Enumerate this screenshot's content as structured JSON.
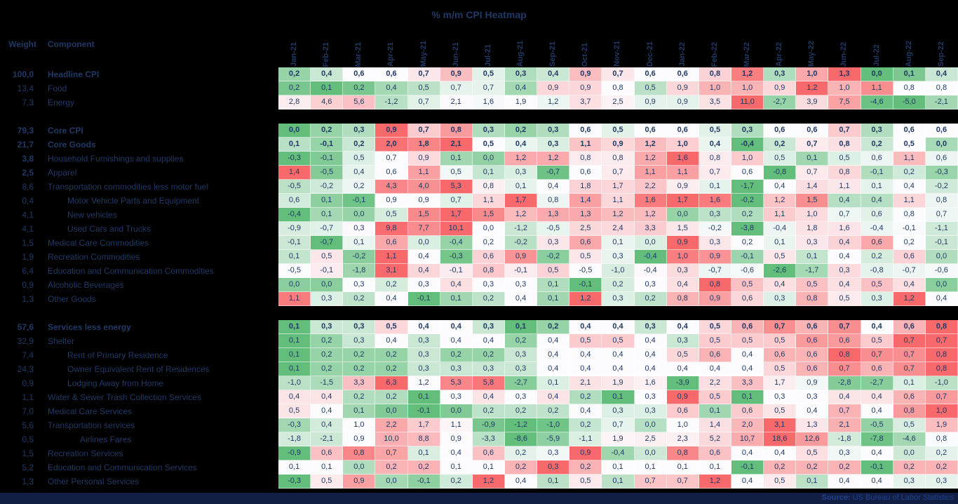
{
  "title": "% m/m CPI Heatmap",
  "header": {
    "weight": "Weight",
    "component": "Component"
  },
  "footer": {
    "source_label": "Source:",
    "source_text": "US Bureau of Labor Statistics"
  },
  "colors": {
    "background": "#000000",
    "text": "#1f3864",
    "scale_min_green": "#63be7b",
    "scale_mid_white": "#fcfcff",
    "scale_max_red": "#f8696b",
    "gridline": "rgba(255,255,255,0.55)",
    "footer_bar": "#111f45"
  },
  "chart_data": {
    "type": "heatmap",
    "title": "% m/m CPI Heatmap",
    "color_scale": "per-row 3-color: green at min, white at median, red at max",
    "decimal_separator": ",",
    "x": [
      "Jan-21",
      "Feb-21",
      "Mar-21",
      "Apr-21",
      "May-21",
      "Jun-21",
      "Jul-21",
      "Aug-21",
      "Sep-21",
      "Oct-21",
      "Nov-21",
      "Dec-21",
      "Jan-22",
      "Feb-22",
      "Mar-22",
      "Apr-22",
      "May-22",
      "Jun-22",
      "Jul-22",
      "Aug-22",
      "Sep-22"
    ],
    "groups": [
      {
        "rows": [
          {
            "weight": "100,0",
            "label": "Headline CPI",
            "bold": true,
            "weight_bold": true,
            "indent": 0,
            "values": [
              0.2,
              0.4,
              0.6,
              0.6,
              0.7,
              0.9,
              0.5,
              0.3,
              0.4,
              0.9,
              0.7,
              0.6,
              0.6,
              0.8,
              1.2,
              0.3,
              1.0,
              1.3,
              0.0,
              0.1,
              0.4
            ]
          },
          {
            "weight": "13,4",
            "label": "Food",
            "bold": false,
            "weight_bold": false,
            "indent": 0,
            "values": [
              0.2,
              0.1,
              0.2,
              0.4,
              0.5,
              0.7,
              0.7,
              0.4,
              0.9,
              0.9,
              0.8,
              0.5,
              0.9,
              1.0,
              1.0,
              0.9,
              1.2,
              1.0,
              1.1,
              0.8,
              0.8
            ]
          },
          {
            "weight": "7,3",
            "label": "Energy",
            "bold": false,
            "weight_bold": false,
            "indent": 0,
            "values": [
              2.8,
              4.6,
              5.6,
              -1.2,
              0.7,
              2.1,
              1.6,
              1.9,
              1.2,
              3.7,
              2.5,
              0.9,
              0.9,
              3.5,
              11.0,
              -2.7,
              3.9,
              7.5,
              -4.6,
              -5.0,
              -2.1
            ]
          }
        ]
      },
      {
        "rows": [
          {
            "weight": "79,3",
            "label": "Core CPI",
            "bold": true,
            "weight_bold": true,
            "indent": 0,
            "values": [
              0.0,
              0.2,
              0.3,
              0.9,
              0.7,
              0.8,
              0.3,
              0.2,
              0.3,
              0.6,
              0.5,
              0.6,
              0.6,
              0.5,
              0.3,
              0.6,
              0.6,
              0.7,
              0.3,
              0.6,
              0.6
            ]
          },
          {
            "weight": "21,7",
            "label": "Core Goods",
            "bold": true,
            "weight_bold": true,
            "indent": 0,
            "values": [
              0.1,
              -0.1,
              0.2,
              2.0,
              1.8,
              2.1,
              0.5,
              0.4,
              0.3,
              1.1,
              0.9,
              1.2,
              1.0,
              0.4,
              -0.4,
              0.2,
              0.7,
              0.8,
              0.2,
              0.5,
              0.0
            ]
          },
          {
            "weight": "3,8",
            "label": "Household Furnishings and supplies",
            "bold": false,
            "weight_bold": true,
            "indent": 0,
            "values": [
              -0.3,
              -0.1,
              0.5,
              0.7,
              0.9,
              0.1,
              0.0,
              1.2,
              1.2,
              0.8,
              0.8,
              1.2,
              1.6,
              0.8,
              1.0,
              0.5,
              0.1,
              0.5,
              0.6,
              1.1,
              0.6
            ]
          },
          {
            "weight": "2,5",
            "label": "Apparel",
            "bold": false,
            "weight_bold": true,
            "indent": 0,
            "values": [
              1.4,
              -0.5,
              0.4,
              0.6,
              1.1,
              0.5,
              0.1,
              0.3,
              -0.7,
              0.6,
              0.7,
              1.1,
              1.1,
              0.7,
              0.6,
              -0.8,
              0.7,
              0.8,
              -0.1,
              0.2,
              -0.3
            ]
          },
          {
            "weight": "8,6",
            "label": "Transportation commodities less motor fuel",
            "bold": false,
            "weight_bold": false,
            "indent": 0,
            "values": [
              -0.5,
              -0.2,
              0.2,
              4.3,
              4.0,
              5.3,
              0.8,
              0.1,
              0.4,
              1.8,
              1.7,
              2.2,
              0.9,
              0.1,
              -1.7,
              0.4,
              1.4,
              1.1,
              0.1,
              0.4,
              -0.2
            ]
          },
          {
            "weight": "0,4",
            "label": "Motor Vehicle Parts and Equipment",
            "bold": false,
            "weight_bold": false,
            "indent": 1,
            "values": [
              0.6,
              0.1,
              -0.1,
              0.9,
              0.9,
              0.7,
              1.1,
              1.7,
              0.8,
              1.4,
              1.1,
              1.6,
              1.7,
              1.6,
              -0.2,
              1.2,
              1.5,
              0.4,
              0.4,
              1.1,
              0.8
            ]
          },
          {
            "weight": "4,1",
            "label": "New vehicles",
            "bold": false,
            "weight_bold": false,
            "indent": 1,
            "values": [
              -0.4,
              0.1,
              0.0,
              0.5,
              1.5,
              1.7,
              1.5,
              1.2,
              1.3,
              1.3,
              1.2,
              1.2,
              0.0,
              0.3,
              0.2,
              1.1,
              1.0,
              0.7,
              0.6,
              0.8,
              0.7
            ]
          },
          {
            "weight": "4,1",
            "label": "Used Cars and Trucks",
            "bold": false,
            "weight_bold": false,
            "indent": 1,
            "values": [
              -0.9,
              -0.7,
              0.3,
              9.8,
              7.7,
              10.1,
              0.0,
              -1.2,
              -0.5,
              2.5,
              2.4,
              3.3,
              1.5,
              -0.2,
              -3.8,
              -0.4,
              1.8,
              1.6,
              -0.4,
              -0.1,
              -1.1
            ]
          },
          {
            "weight": "1,5",
            "label": "Medical Care Commodities",
            "bold": false,
            "weight_bold": false,
            "indent": 0,
            "values": [
              -0.1,
              -0.7,
              0.1,
              0.6,
              0.0,
              -0.4,
              0.2,
              -0.2,
              0.3,
              0.6,
              0.1,
              0.0,
              0.9,
              0.3,
              0.2,
              0.1,
              0.3,
              0.4,
              0.6,
              0.2,
              -0.1
            ]
          },
          {
            "weight": "1,9",
            "label": "Recreation Commodities",
            "bold": false,
            "weight_bold": false,
            "indent": 0,
            "values": [
              0.1,
              0.5,
              -0.2,
              1.1,
              0.4,
              -0.3,
              0.6,
              0.9,
              -0.2,
              0.5,
              0.3,
              -0.4,
              1.0,
              0.9,
              -0.1,
              0.5,
              0.1,
              0.4,
              0.2,
              0.6,
              0.0
            ]
          },
          {
            "weight": "6,4",
            "label": "Education and Communication Commodities",
            "bold": false,
            "weight_bold": false,
            "indent": 0,
            "values": [
              -0.5,
              -0.1,
              -1.8,
              3.1,
              0.4,
              -0.1,
              0.8,
              -0.1,
              0.5,
              -0.5,
              -1.0,
              -0.4,
              0.3,
              -0.7,
              -0.6,
              -2.6,
              -1.7,
              0.3,
              -0.8,
              -0.7,
              -0.6
            ]
          },
          {
            "weight": "0,9",
            "label": "Alcoholic Beverages",
            "bold": false,
            "weight_bold": false,
            "indent": 0,
            "values": [
              0.0,
              0.0,
              0.3,
              0.2,
              0.3,
              0.4,
              0.3,
              0.3,
              0.1,
              -0.1,
              0.2,
              0.3,
              0.4,
              0.8,
              0.5,
              0.4,
              0.5,
              0.4,
              0.5,
              0.4,
              0.0
            ]
          },
          {
            "weight": "1,3",
            "label": "Other Goods",
            "bold": false,
            "weight_bold": false,
            "indent": 0,
            "values": [
              1.1,
              0.3,
              0.2,
              0.4,
              -0.1,
              0.1,
              0.2,
              0.4,
              0.1,
              1.2,
              0.3,
              0.2,
              0.8,
              0.9,
              0.6,
              0.3,
              0.8,
              0.5,
              0.3,
              1.2,
              0.4
            ]
          }
        ]
      },
      {
        "rows": [
          {
            "weight": "57,6",
            "label": "Services less energy",
            "bold": true,
            "weight_bold": true,
            "indent": 0,
            "values": [
              0.1,
              0.3,
              0.3,
              0.5,
              0.4,
              0.4,
              0.3,
              0.1,
              0.2,
              0.4,
              0.4,
              0.3,
              0.4,
              0.5,
              0.6,
              0.7,
              0.6,
              0.7,
              0.4,
              0.6,
              0.8
            ]
          },
          {
            "weight": "32,9",
            "label": "Shelter",
            "bold": false,
            "weight_bold": false,
            "indent": 0,
            "values": [
              0.1,
              0.2,
              0.3,
              0.4,
              0.3,
              0.4,
              0.4,
              0.2,
              0.4,
              0.5,
              0.5,
              0.4,
              0.3,
              0.5,
              0.5,
              0.5,
              0.6,
              0.6,
              0.5,
              0.7,
              0.7
            ]
          },
          {
            "weight": "7,4",
            "label": "Rent of Primary Residence",
            "bold": false,
            "weight_bold": false,
            "indent": 1,
            "values": [
              0.1,
              0.2,
              0.2,
              0.2,
              0.3,
              0.2,
              0.2,
              0.3,
              0.4,
              0.4,
              0.4,
              0.4,
              0.5,
              0.6,
              0.4,
              0.6,
              0.6,
              0.8,
              0.7,
              0.7,
              0.8
            ]
          },
          {
            "weight": "24,3",
            "label": "Owner Equivalent Rent of Residences",
            "bold": false,
            "weight_bold": false,
            "indent": 1,
            "values": [
              0.1,
              0.2,
              0.2,
              0.2,
              0.3,
              0.3,
              0.3,
              0.3,
              0.4,
              0.4,
              0.4,
              0.4,
              0.4,
              0.4,
              0.4,
              0.5,
              0.6,
              0.7,
              0.6,
              0.7,
              0.8
            ]
          },
          {
            "weight": "0,9",
            "label": "Lodging Away from Home",
            "bold": false,
            "weight_bold": false,
            "indent": 1,
            "values": [
              -1.0,
              -1.5,
              3.3,
              6.3,
              1.2,
              5.3,
              5.8,
              -2.7,
              0.1,
              2.1,
              1.9,
              1.6,
              -3.9,
              2.2,
              3.3,
              1.7,
              0.9,
              -2.8,
              -2.7,
              0.1,
              -1.0
            ]
          },
          {
            "weight": "1,1",
            "label": "Water & Sewer Trash Collection Services",
            "bold": false,
            "weight_bold": false,
            "indent": 0,
            "values": [
              0.4,
              0.4,
              0.2,
              0.2,
              0.1,
              0.3,
              0.4,
              0.3,
              0.4,
              0.2,
              0.1,
              0.3,
              0.9,
              0.5,
              0.1,
              0.3,
              0.3,
              0.4,
              0.4,
              0.6,
              0.7
            ]
          },
          {
            "weight": "7,0",
            "label": "Medical Care Services",
            "bold": false,
            "weight_bold": false,
            "indent": 0,
            "values": [
              0.5,
              0.4,
              0.1,
              0.0,
              -0.1,
              0.0,
              0.2,
              0.2,
              0.2,
              0.4,
              0.3,
              0.3,
              0.6,
              0.1,
              0.6,
              0.5,
              0.4,
              0.7,
              0.4,
              0.8,
              1.0
            ]
          },
          {
            "weight": "5,6",
            "label": "Transportation services",
            "bold": false,
            "weight_bold": false,
            "indent": 0,
            "values": [
              -0.3,
              0.4,
              1.0,
              2.2,
              1.7,
              1.1,
              -0.9,
              -1.2,
              -1.0,
              0.2,
              0.7,
              0.0,
              1.0,
              1.4,
              2.0,
              3.1,
              1.3,
              2.1,
              -0.5,
              0.5,
              1.9
            ]
          },
          {
            "weight": "0,5",
            "label": "Airlines Fares",
            "bold": false,
            "weight_bold": false,
            "indent": 2,
            "values": [
              -1.8,
              -2.1,
              0.9,
              10.0,
              8.8,
              0.9,
              -3.3,
              -8.6,
              -5.9,
              -1.1,
              1.9,
              2.5,
              2.3,
              5.2,
              10.7,
              18.6,
              12.6,
              -1.8,
              -7.8,
              -4.6,
              0.8
            ]
          },
          {
            "weight": "1,5",
            "label": "Recreation Services",
            "bold": false,
            "weight_bold": false,
            "indent": 0,
            "values": [
              -0.9,
              0.6,
              0.8,
              0.7,
              0.1,
              0.4,
              0.6,
              0.2,
              0.3,
              0.9,
              -0.4,
              0.0,
              0.8,
              0.6,
              0.4,
              0.4,
              0.5,
              0.3,
              0.4,
              0.0,
              0.2
            ]
          },
          {
            "weight": "5,2",
            "label": "Education and Communication Services",
            "bold": false,
            "weight_bold": false,
            "indent": 0,
            "values": [
              0.1,
              0.1,
              0.0,
              0.2,
              0.2,
              0.1,
              0.1,
              0.2,
              0.3,
              0.2,
              0.1,
              0.1,
              0.1,
              0.1,
              -0.1,
              0.2,
              0.2,
              0.2,
              -0.1,
              0.2,
              0.2
            ]
          },
          {
            "weight": "1,3",
            "label": "Other Personal Services",
            "bold": false,
            "weight_bold": false,
            "indent": 0,
            "values": [
              -0.3,
              0.5,
              0.9,
              0.0,
              -0.1,
              0.2,
              1.2,
              0.4,
              0.1,
              0.5,
              0.1,
              0.7,
              0.7,
              1.2,
              0.4,
              0.5,
              0.1,
              0.4,
              0.4,
              0.3,
              0.3
            ]
          }
        ]
      }
    ]
  }
}
